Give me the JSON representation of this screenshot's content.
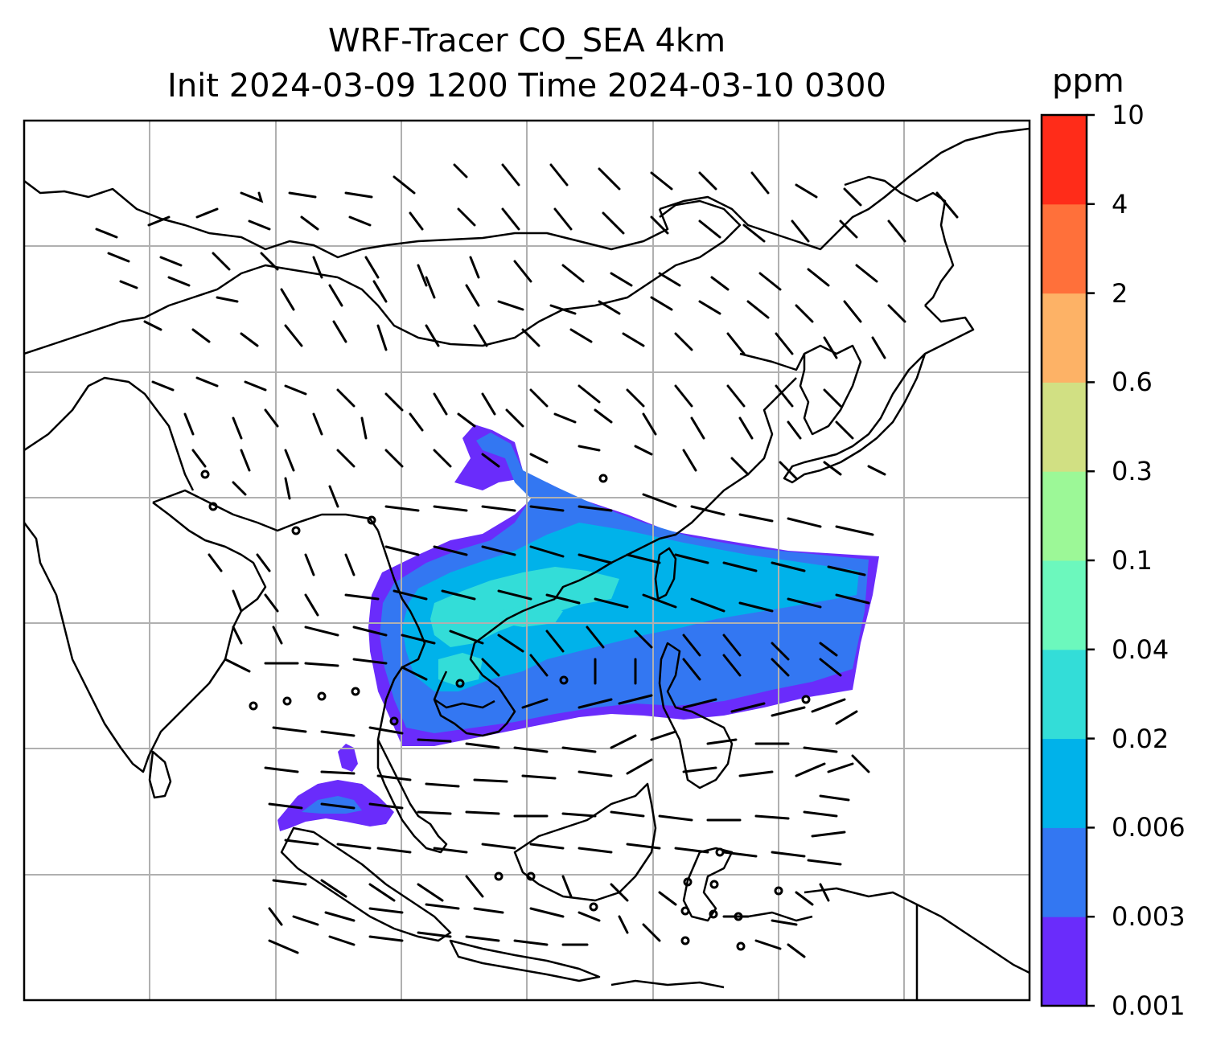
{
  "title": {
    "line1": "WRF-Tracer CO_SEA 4km",
    "line2": "Init 2024-03-09 1200 Time 2024-03-10 0300"
  },
  "colorbar": {
    "unit": "ppm",
    "levels": [
      "0.001",
      "0.003",
      "0.006",
      "0.02",
      "0.04",
      "0.1",
      "0.3",
      "0.6",
      "2",
      "4",
      "10"
    ],
    "colors": [
      "#6a2cfb",
      "#3377f2",
      "#00b2ea",
      "#33ddd8",
      "#6cf8bd",
      "#9cf897",
      "#d1e083",
      "#fdb266",
      "#ff703a",
      "#ff2c19"
    ]
  },
  "map": {
    "gridlines": true,
    "field": "CO tracer concentration with wind barbs",
    "coastline_color": "#000000",
    "grid_color": "#b0b0b0"
  }
}
